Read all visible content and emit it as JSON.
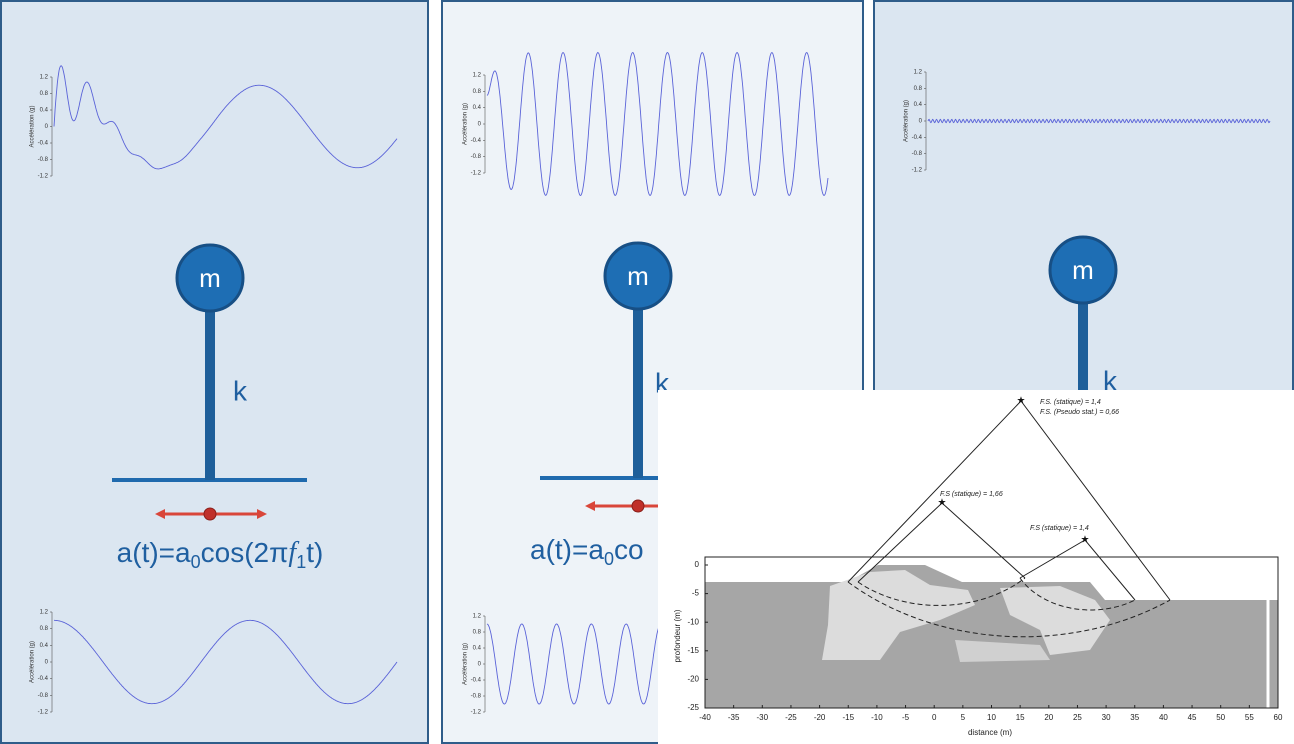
{
  "panels": [
    {
      "top_plot": {
        "y_label": "Accélération (g)",
        "yticks": [
          1.2,
          0.8,
          0.4,
          0,
          -0.4,
          -0.8,
          -1.2
        ]
      },
      "mass": "m",
      "spring": "k",
      "formula": {
        "lhs": "a(t)=a",
        "a_sub": "0",
        "cos": "cos(2π",
        "f": "f",
        "f_sub": "1",
        "rest": "t)"
      },
      "bottom_plot": {
        "y_label": "Accélération (g)",
        "yticks": [
          1.2,
          0.8,
          0.4,
          0,
          -0.4,
          -0.8,
          -1.2
        ]
      }
    },
    {
      "top_plot": {
        "y_label": "Accélération (g)",
        "yticks": [
          1.2,
          0.8,
          0.4,
          0,
          -0.4,
          -0.8,
          -1.2
        ]
      },
      "mass": "m",
      "spring": "k",
      "formula": {
        "lhs": "a(t)=a",
        "a_sub": "0",
        "cos": "co"
      },
      "bottom_plot": {
        "y_label": "Accélération (g)",
        "yticks": [
          1.2,
          0.8,
          0.4,
          0,
          -0.4,
          -0.8,
          -1.2
        ]
      }
    },
    {
      "top_plot": {
        "y_label": "Accélération (g)",
        "yticks": [
          1.2,
          0.8,
          0.4,
          0,
          -0.4,
          -0.8,
          -1.2
        ]
      },
      "mass": "m",
      "spring": "k"
    }
  ],
  "inset": {
    "labels": [
      "F.S. (statique) = 1,4",
      "F.S. (Pseudo stat.) = 0,66",
      "F.S (statique) = 1,66",
      "F.S (statique) = 1,4"
    ],
    "y_label": "profondeur (m)",
    "x_label": "distance (m)",
    "xticks": [
      -40,
      -35,
      -30,
      -25,
      -20,
      -15,
      -10,
      -5,
      0,
      5,
      10,
      15,
      20,
      25,
      30,
      35,
      40,
      45,
      50,
      55,
      60
    ],
    "yticks": [
      0,
      -5,
      -10,
      -15,
      -20,
      -25
    ]
  }
}
